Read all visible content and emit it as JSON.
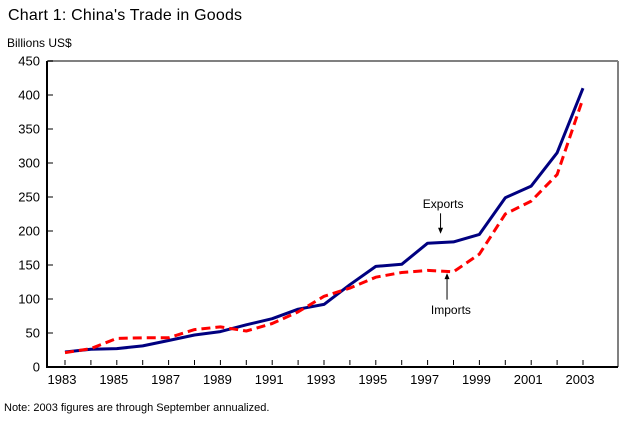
{
  "page": {
    "background": "#FFFFFF"
  },
  "chart_data": {
    "type": "line",
    "title": "Chart 1: China's Trade in Goods",
    "unit_label": "Billions US$",
    "note": "Note: 2003 figures are through September annualized.",
    "x": [
      1983,
      1984,
      1985,
      1986,
      1987,
      1988,
      1989,
      1990,
      1991,
      1992,
      1993,
      1994,
      1995,
      1996,
      1997,
      1998,
      1999,
      2000,
      2001,
      2002,
      2003
    ],
    "x_tick_labels": [
      "1983",
      "1985",
      "1987",
      "1989",
      "1991",
      "1993",
      "1995",
      "1997",
      "1999",
      "2001",
      "2003"
    ],
    "y_ticks": [
      0,
      50,
      100,
      150,
      200,
      250,
      300,
      350,
      400,
      450
    ],
    "ylim": [
      0,
      450
    ],
    "grid": false,
    "legend_position": "inline-annotations",
    "series": [
      {
        "name": "Exports",
        "color": "#000080",
        "line_style": "solid",
        "values": [
          22,
          26,
          27,
          31,
          39,
          47,
          52,
          62,
          71,
          85,
          92,
          121,
          148,
          151,
          182,
          184,
          195,
          249,
          266,
          315,
          410
        ]
      },
      {
        "name": "Imports",
        "color": "#FF0000",
        "line_style": "dashed",
        "values": [
          21,
          27,
          42,
          43,
          43,
          55,
          59,
          53,
          64,
          81,
          104,
          116,
          132,
          139,
          142,
          140,
          166,
          225,
          244,
          283,
          395
        ]
      }
    ],
    "annotations": [
      {
        "text": "Exports",
        "series": "Exports",
        "text_year": 1997.6,
        "text_value": 240,
        "arrow_year": 1997.5,
        "arrow_from_value": 226,
        "arrow_to_value": 196,
        "direction": "down"
      },
      {
        "text": "Imports",
        "series": "Imports",
        "text_year": 1997.9,
        "text_value": 84,
        "arrow_year": 1997.75,
        "arrow_from_value": 99,
        "arrow_to_value": 138,
        "direction": "up"
      }
    ],
    "frame_colors": {
      "axis": "#000000",
      "box": "#808080"
    }
  }
}
